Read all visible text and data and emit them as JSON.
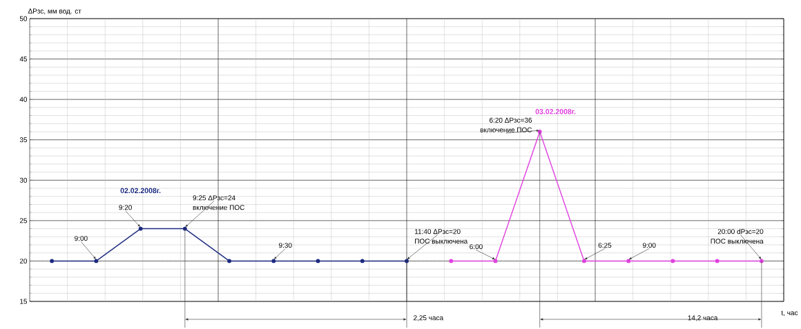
{
  "chart_data": {
    "type": "line",
    "ylabel": "ΔPзс, мм вод. ст",
    "xlabel": "t, час",
    "categories": [
      null,
      null,
      null,
      null,
      null,
      null,
      null,
      null,
      null,
      null,
      null,
      null,
      null,
      null,
      null,
      null,
      null
    ],
    "series": [
      {
        "name": "02.02.2008г.",
        "color": "#1c2a80",
        "values": [
          20,
          20,
          24,
          24,
          20,
          20,
          20,
          20,
          20,
          null,
          null,
          null,
          null,
          null,
          null,
          null,
          null
        ]
      },
      {
        "name": "03.02.2008г.",
        "color": "#e040e0",
        "values": [
          null,
          null,
          null,
          null,
          null,
          null,
          null,
          null,
          null,
          20,
          20,
          36,
          20,
          20,
          20,
          20,
          20
        ]
      }
    ],
    "ylim": [
      15,
      50
    ],
    "yticks": [
      15,
      20,
      25,
      30,
      35,
      40,
      45,
      50
    ],
    "tick_labels": "y",
    "grid": true,
    "legend": false,
    "marker": "circle",
    "line_style": "solid",
    "ref_lines": [
      {
        "axis": "y",
        "value": 20,
        "line_style": "dashed",
        "color": "#707070"
      }
    ],
    "annotations": [
      "9:00",
      "9:20",
      "9:25 ΔPзс=24",
      "включение  ПОС",
      "9:30",
      "11:40 ΔPзс=20",
      "ПОС выключена",
      "2,25 часа",
      "6:20 ΔPзс=36",
      "включение ПОС",
      "6:00",
      "6:25",
      "9:00",
      "20:00 dPзс=20",
      "ПОС выключена",
      "14,2 часа"
    ]
  }
}
